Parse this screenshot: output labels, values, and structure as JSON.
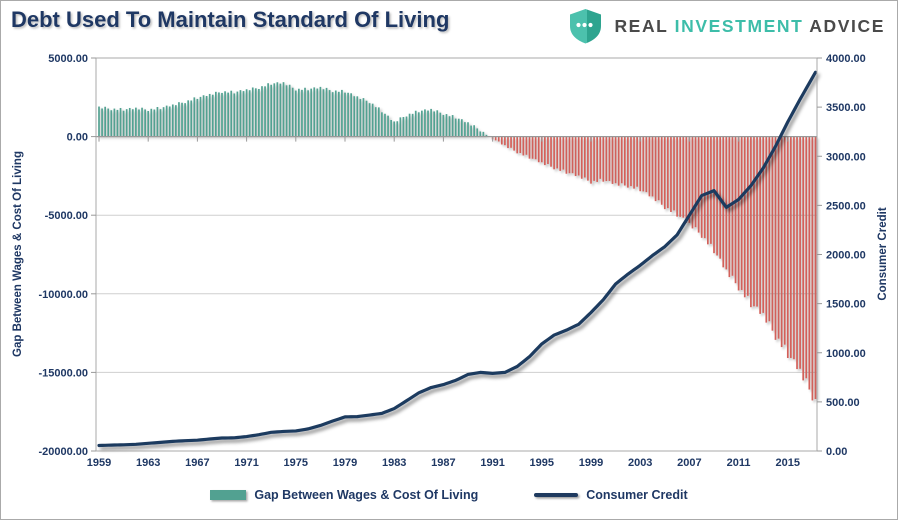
{
  "header": {
    "title": "Debt Used To Maintain Standard Of Living",
    "logo": {
      "real": "REAL",
      "investment": "INVESTMENT",
      "advice": "ADVICE"
    }
  },
  "chart_data": {
    "type": "combo",
    "title": "Debt Used To Maintain Standard Of Living",
    "bar_resolution": "quarterly",
    "x": [
      1959,
      1960,
      1961,
      1962,
      1963,
      1964,
      1965,
      1966,
      1967,
      1968,
      1969,
      1970,
      1971,
      1972,
      1973,
      1974,
      1975,
      1976,
      1977,
      1978,
      1979,
      1980,
      1981,
      1982,
      1983,
      1984,
      1985,
      1986,
      1987,
      1988,
      1989,
      1990,
      1991,
      1992,
      1993,
      1994,
      1995,
      1996,
      1997,
      1998,
      1999,
      2000,
      2001,
      2002,
      2003,
      2004,
      2005,
      2006,
      2007,
      2008,
      2009,
      2010,
      2011,
      2012,
      2013,
      2014,
      2015,
      2016,
      2017
    ],
    "series": [
      {
        "name": "Gap Between Wages & Cost Of Living",
        "type": "bar",
        "axis": "left",
        "color": "#52A191",
        "negative_color": "#D2615A",
        "values": [
          1850,
          1750,
          1700,
          1780,
          1700,
          1800,
          1980,
          2200,
          2450,
          2650,
          2850,
          2800,
          2950,
          3100,
          3350,
          3400,
          3000,
          3000,
          3100,
          2900,
          2850,
          2500,
          2200,
          1600,
          900,
          1350,
          1600,
          1700,
          1450,
          1200,
          850,
          400,
          -150,
          -600,
          -1000,
          -1350,
          -1700,
          -2000,
          -2300,
          -2550,
          -2900,
          -2800,
          -3050,
          -3150,
          -3400,
          -3900,
          -4500,
          -5000,
          -5600,
          -6300,
          -7300,
          -8600,
          -9600,
          -10700,
          -11400,
          -12700,
          -13900,
          -15000,
          -16500
        ]
      },
      {
        "name": "Consumer Credit",
        "type": "line",
        "axis": "right",
        "color": "#1F3A5F",
        "values": [
          56,
          60,
          63,
          68,
          78,
          88,
          98,
          105,
          110,
          122,
          132,
          134,
          147,
          166,
          190,
          199,
          204,
          225,
          260,
          305,
          347,
          350,
          366,
          383,
          432,
          511,
          592,
          646,
          676,
          719,
          779,
          800,
          790,
          800,
          860,
          960,
          1090,
          1180,
          1230,
          1290,
          1410,
          1540,
          1700,
          1800,
          1890,
          1990,
          2080,
          2200,
          2400,
          2600,
          2650,
          2480,
          2560,
          2700,
          2880,
          3100,
          3350,
          3580,
          3800
        ]
      }
    ],
    "left_axis": {
      "label": "Gap Between Wages  & Cost Of Living",
      "min": -20000,
      "max": 5000,
      "ticks": [
        "5000.00",
        "0.00",
        "-5000.00",
        "-10000.00",
        "-15000.00",
        "-20000.00"
      ]
    },
    "right_axis": {
      "label": "Consumer Credit",
      "min": 0,
      "max": 4000,
      "ticks": [
        "4000.00",
        "3500.00",
        "3000.00",
        "2500.00",
        "2000.00",
        "1500.00",
        "1000.00",
        "500.00",
        "0.00"
      ]
    },
    "x_axis": {
      "tick_years": [
        1959,
        1963,
        1967,
        1971,
        1975,
        1979,
        1983,
        1987,
        1991,
        1995,
        1999,
        2003,
        2007,
        2011,
        2015
      ]
    },
    "legend": [
      "Gap Between Wages & Cost Of Living",
      "Consumer Credit"
    ],
    "grid": "horizontal",
    "legend_position": "bottom"
  },
  "colors": {
    "title_navy": "#1F3864",
    "bar_positive": "#52A191",
    "bar_negative": "#D2615A",
    "line_navy": "#1F3A5F",
    "logo_teal": "#3DBDA9",
    "logo_gray": "#4A4A4A",
    "gridline": "#CFCFCF",
    "axis_line": "#999999"
  }
}
